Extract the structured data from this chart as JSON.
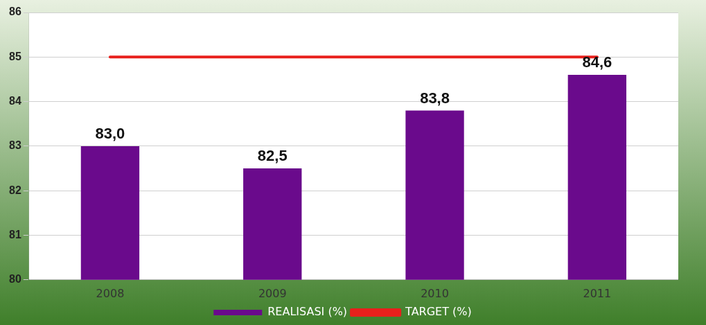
{
  "chart_data": {
    "type": "bar",
    "categories": [
      "2008",
      "2009",
      "2010",
      "2011"
    ],
    "series": [
      {
        "name": "REALISASI (%)",
        "color": "#6a0a8c",
        "values": [
          83.0,
          82.5,
          83.8,
          84.6
        ],
        "value_labels": [
          "83,0",
          "82,5",
          "83,8",
          "84,6"
        ]
      },
      {
        "name": "TARGET (%)",
        "type": "line",
        "color": "#e8201c",
        "values": [
          85,
          85,
          85,
          85
        ],
        "marker": "none"
      }
    ],
    "ylim": [
      80,
      86
    ],
    "yticks": [
      80,
      81,
      82,
      83,
      84,
      85,
      86
    ],
    "grid": "y",
    "legend": "bottom"
  }
}
